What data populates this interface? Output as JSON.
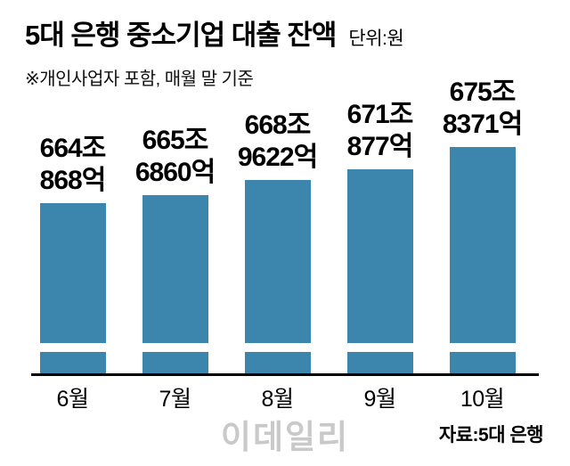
{
  "header": {
    "title": "5대 은행 중소기업 대출 잔액",
    "unit_label": "단위:원"
  },
  "note": "※개인사업자 포함, 매월 말 기준",
  "source": "자료:5대 은행",
  "watermark": "이데일리",
  "colors": {
    "bar": "#3c86ae",
    "axis": "#000000",
    "watermark": "#c9c9c9"
  },
  "chart_data": {
    "type": "bar",
    "title": "5대 은행 중소기업 대출 잔액",
    "unit": "원 (values in 조원)",
    "categories": [
      "6월",
      "7월",
      "8월",
      "9월",
      "10월"
    ],
    "values": [
      664.0868,
      665.686,
      668.9622,
      671.0877,
      675.8371
    ],
    "value_labels": [
      "664조\n868억",
      "665조\n6860억",
      "668조\n9622억",
      "671조\n877억",
      "675조\n8371억"
    ],
    "xlabel": "",
    "ylabel": "",
    "axis_break": true,
    "grid": false,
    "legend": false,
    "note": "※개인사업자 포함, 매월 말 기준",
    "source": "자료:5대 은행"
  }
}
